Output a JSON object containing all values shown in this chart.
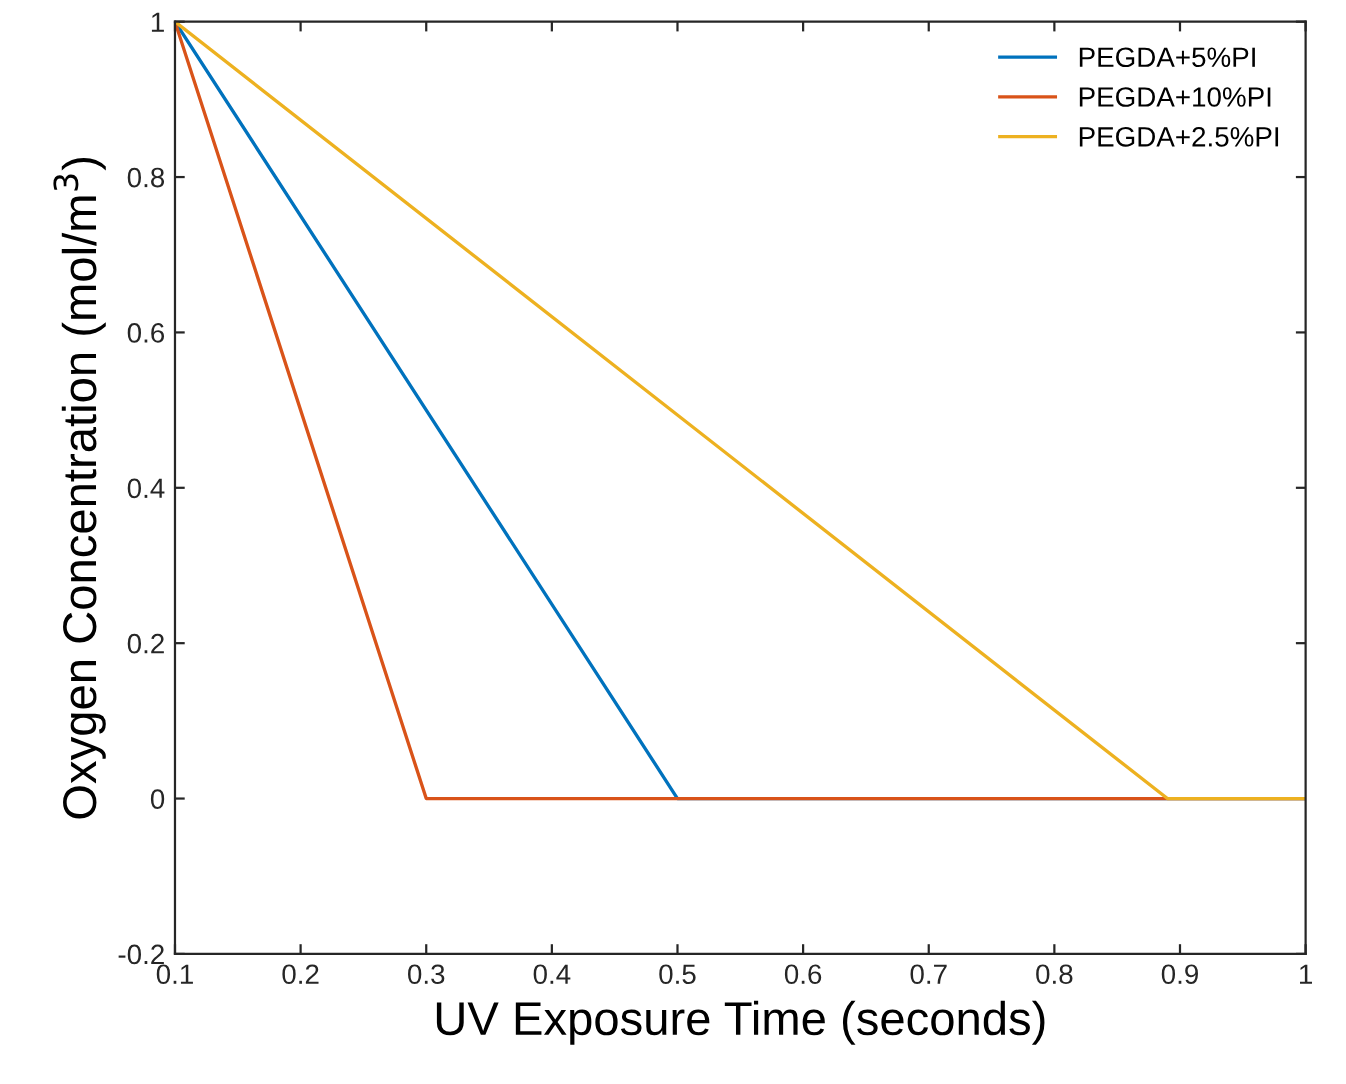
{
  "chart_data": {
    "type": "line",
    "xlabel": "UV Exposure Time (seconds)",
    "ylabel": "Oxygen Concentration (mol/m$^{3}$)",
    "xlim": [
      0.1,
      1
    ],
    "xticks": [
      0.1,
      0.2,
      0.3,
      0.4,
      0.5,
      0.6,
      0.7,
      0.8,
      0.9,
      1
    ],
    "ylim": [
      -0.2,
      1
    ],
    "yticks": [
      -0.2,
      0,
      0.2,
      0.4,
      0.6,
      0.8,
      1
    ],
    "legend": "top right",
    "grid": false,
    "series": [
      {
        "name": "PEGDA+5%PI",
        "color": "#0072bd",
        "x": [
          0.1,
          0.5,
          1
        ],
        "values": [
          1,
          0,
          0
        ]
      },
      {
        "name": "PEGDA+10%PI",
        "color": "#d95319",
        "x": [
          0.1,
          0.3,
          1
        ],
        "values": [
          1,
          0,
          0
        ]
      },
      {
        "name": "PEGDA+2.5%PI",
        "color": "#edb120",
        "x": [
          0.1,
          0.89,
          1
        ],
        "values": [
          1,
          0,
          0
        ]
      }
    ]
  }
}
